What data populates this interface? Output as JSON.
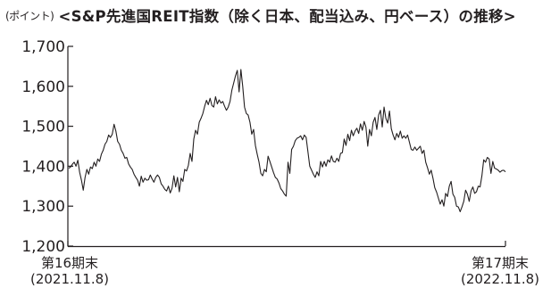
{
  "header": {
    "unit": "(ポイント)",
    "title": "<S&P先進国REIT指数（除く日本、配当込み、円ベース）の推移>"
  },
  "chart_data": {
    "type": "line",
    "title": "<S&P先進国REIT指数（除く日本、配当込み、円ベース）の推移>",
    "ylabel": "(ポイント)",
    "ylim": [
      1200,
      1700
    ],
    "y_ticks": [
      1200,
      1300,
      1400,
      1500,
      1600,
      1700
    ],
    "y_tick_labels": [
      "1,200",
      "1,300",
      "1,400",
      "1,500",
      "1,600",
      "1,700"
    ],
    "x_start": {
      "line1": "第16期末",
      "line2": "(2021.11.8)"
    },
    "x_end": {
      "line1": "第17期末",
      "line2": "(2022.11.8)"
    },
    "grid": false,
    "series": [
      {
        "values": [
          1395,
          1398,
          1405,
          1410,
          1400,
          1415,
          1385,
          1365,
          1340,
          1372,
          1392,
          1380,
          1398,
          1394,
          1410,
          1400,
          1418,
          1412,
          1430,
          1440,
          1455,
          1462,
          1478,
          1472,
          1480,
          1505,
          1488,
          1462,
          1455,
          1440,
          1432,
          1420,
          1422,
          1406,
          1398,
          1392,
          1380,
          1372,
          1365,
          1350,
          1375,
          1360,
          1370,
          1365,
          1366,
          1378,
          1368,
          1360,
          1372,
          1378,
          1372,
          1356,
          1350,
          1342,
          1338,
          1350,
          1333,
          1345,
          1376,
          1348,
          1372,
          1336,
          1370,
          1362,
          1392,
          1388,
          1402,
          1432,
          1412,
          1468,
          1490,
          1480,
          1510,
          1520,
          1532,
          1550,
          1565,
          1554,
          1570,
          1552,
          1548,
          1574,
          1556,
          1566,
          1558,
          1562,
          1550,
          1540,
          1548,
          1562,
          1590,
          1608,
          1626,
          1640,
          1586,
          1642,
          1600,
          1548,
          1532,
          1528,
          1510,
          1480,
          1492,
          1452,
          1430,
          1410,
          1382,
          1376,
          1392,
          1386,
          1425,
          1412,
          1398,
          1384,
          1372,
          1368,
          1358,
          1344,
          1338,
          1330,
          1325,
          1410,
          1382,
          1442,
          1450,
          1464,
          1470,
          1472,
          1476,
          1466,
          1478,
          1472,
          1436,
          1400,
          1390,
          1380,
          1372,
          1386,
          1376,
          1412,
          1398,
          1412,
          1400,
          1416,
          1410,
          1426,
          1412,
          1410,
          1420,
          1412,
          1432,
          1434,
          1468,
          1452,
          1480,
          1464,
          1490,
          1476,
          1488,
          1495,
          1482,
          1506,
          1490,
          1512,
          1498,
          1450,
          1492,
          1476,
          1510,
          1522,
          1492,
          1528,
          1540,
          1498,
          1548,
          1520,
          1508,
          1538,
          1494,
          1478,
          1466,
          1482,
          1472,
          1488,
          1470,
          1476,
          1470,
          1478,
          1460,
          1442,
          1440,
          1448,
          1440,
          1445,
          1450,
          1432,
          1440,
          1410,
          1396,
          1380,
          1390,
          1370,
          1346,
          1335,
          1320,
          1305,
          1316,
          1300,
          1332,
          1324,
          1350,
          1362,
          1330,
          1322,
          1300,
          1298,
          1286,
          1298,
          1312,
          1340,
          1330,
          1312,
          1338,
          1348,
          1332,
          1336,
          1350,
          1348,
          1376,
          1416,
          1410,
          1422,
          1418,
          1382,
          1412,
          1395,
          1393,
          1390,
          1385,
          1389,
          1390,
          1386
        ]
      }
    ]
  }
}
